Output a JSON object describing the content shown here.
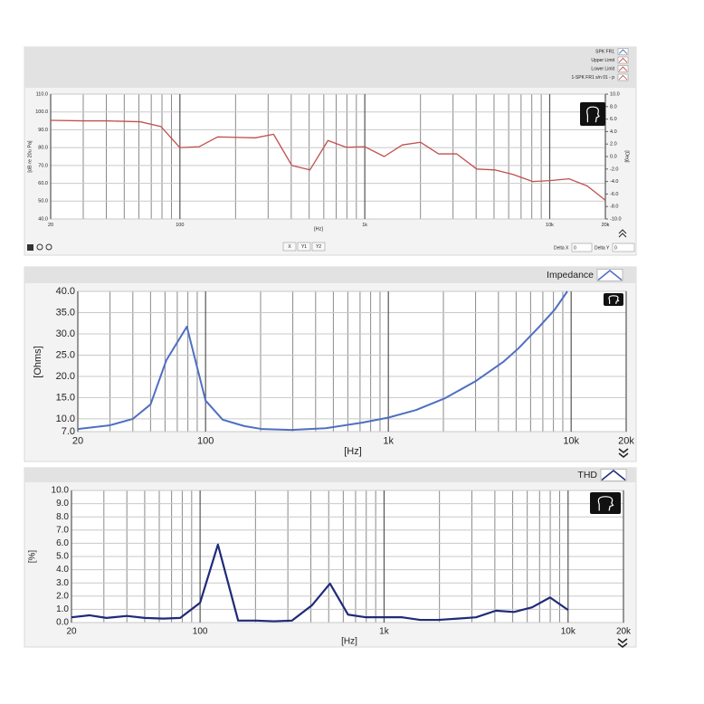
{
  "chart_data": [
    {
      "type": "line",
      "xscale": "log",
      "xlim": [
        20,
        20000
      ],
      "xticks": [
        20,
        100,
        {
          "value": 1000,
          "label": "1k"
        },
        {
          "value": 10000,
          "label": "10k"
        },
        {
          "value": 20000,
          "label": "20k"
        }
      ],
      "xgrid": [
        30,
        40,
        50,
        60,
        70,
        80,
        90,
        200,
        300,
        400,
        500,
        600,
        700,
        800,
        900,
        2000,
        3000,
        4000,
        5000,
        6000,
        7000,
        8000,
        9000
      ],
      "ylim": [
        40,
        110
      ],
      "yticks": [
        {
          "value": 110,
          "label": "110.0"
        },
        {
          "value": 100,
          "label": "100.0"
        },
        {
          "value": 90,
          "label": "90.0"
        },
        {
          "value": 80,
          "label": "80.0"
        },
        {
          "value": 70,
          "label": "70.0"
        },
        {
          "value": 60,
          "label": "60.0"
        },
        {
          "value": 50,
          "label": "50.0"
        },
        {
          "value": 40,
          "label": "40.0"
        }
      ],
      "y2lim": [
        -10,
        10
      ],
      "y2ticks": [
        {
          "value": 10,
          "label": "10.0"
        },
        {
          "value": 8,
          "label": "8.0"
        },
        {
          "value": 6,
          "label": "6.0"
        },
        {
          "value": 4,
          "label": "4.0"
        },
        {
          "value": 2,
          "label": "2.0"
        },
        {
          "value": 0,
          "label": "0.0"
        },
        {
          "value": -2,
          "label": "-2.0"
        },
        {
          "value": -4,
          "label": "-4.0"
        },
        {
          "value": -6,
          "label": "-6.0"
        },
        {
          "value": -8,
          "label": "-8.0"
        },
        {
          "value": -10,
          "label": "-10.0"
        }
      ],
      "xlabel": "[Hz]",
      "ylabel": "[dB re 20u Pa]",
      "y2label": "[Deg]",
      "legend": [
        {
          "name": "SPK FR1",
          "color": "#3b5bb5"
        },
        {
          "name": "Upper Limit",
          "color": "#c0392b"
        },
        {
          "name": "Lower Limit",
          "color": "#c0392b"
        }
      ],
      "x": [
        20,
        30,
        40,
        61,
        79,
        100,
        127,
        160,
        256,
        321,
        403,
        505,
        632,
        793,
        1000,
        1273,
        1595,
        2000,
        2507,
        3140,
        4030,
        5050,
        6325,
        8100,
        10000,
        12740,
        15960,
        20000
      ],
      "series": [
        {
          "name": "1-SPK FR1 s/n 01 - p",
          "color": "#c0504d",
          "values": [
            95.3,
            95,
            95,
            94.5,
            91.8,
            80,
            80.5,
            86,
            85.5,
            87.5,
            70,
            67.5,
            84,
            80.2,
            80.5,
            75,
            81.5,
            83,
            76.5,
            76.5,
            68,
            67.5,
            65,
            61,
            61.5,
            62.5,
            58.5,
            50.5
          ]
        }
      ],
      "buttons": [
        "X",
        "Y1",
        "Y2"
      ],
      "delta_x_label": "Delta X",
      "delta_x": 0,
      "delta_y_label": "Delta Y",
      "delta_y": 0
    },
    {
      "type": "line",
      "xscale": "log",
      "xlim": [
        20,
        20000
      ],
      "xticks": [
        20,
        100,
        {
          "value": 1000,
          "label": "1k"
        },
        {
          "value": 10000,
          "label": "10k"
        },
        {
          "value": 20000,
          "label": "20k"
        }
      ],
      "xgrid": [
        30,
        40,
        50,
        60,
        70,
        80,
        90,
        200,
        300,
        400,
        500,
        600,
        700,
        800,
        900,
        2000,
        3000,
        4000,
        5000,
        6000,
        7000,
        8000,
        9000
      ],
      "ylim": [
        7,
        40
      ],
      "yticks": [
        {
          "value": 40,
          "label": "40.0"
        },
        {
          "value": 35,
          "label": "35.0"
        },
        {
          "value": 30,
          "label": "30.0"
        },
        {
          "value": 25,
          "label": "25.0"
        },
        {
          "value": 20,
          "label": "20.0"
        },
        {
          "value": 15,
          "label": "15.0"
        },
        {
          "value": 10,
          "label": "10.0"
        },
        {
          "value": 7,
          "label": "7.0"
        }
      ],
      "xlabel": "[Hz]",
      "ylabel": "[Ohms]",
      "x": [
        20,
        30,
        40,
        50,
        61,
        79,
        100,
        124,
        163,
        204,
        294,
        454,
        716,
        1000,
        1420,
        2050,
        3010,
        4250,
        5150,
        6700,
        8130,
        9530
      ],
      "series": [
        {
          "name": "Impedance",
          "color": "#4f6fc2",
          "values": [
            7.6,
            8.5,
            10,
            13.4,
            23.8,
            31.7,
            14.3,
            9.8,
            8.3,
            7.6,
            7.4,
            7.8,
            9.1,
            10.3,
            12.1,
            14.9,
            18.9,
            23.4,
            26.6,
            31.7,
            35.7,
            40
          ]
        }
      ]
    },
    {
      "type": "line",
      "xscale": "log",
      "xlim": [
        20,
        20000
      ],
      "xticks": [
        20,
        100,
        {
          "value": 1000,
          "label": "1k"
        },
        {
          "value": 10000,
          "label": "10k"
        },
        {
          "value": 20000,
          "label": "20k"
        }
      ],
      "xgrid": [
        30,
        40,
        50,
        60,
        70,
        80,
        90,
        200,
        300,
        400,
        500,
        600,
        700,
        800,
        900,
        2000,
        3000,
        4000,
        5000,
        6000,
        7000,
        8000,
        9000
      ],
      "ylim": [
        0,
        10
      ],
      "yticks": [
        {
          "value": 10,
          "label": "10.0"
        },
        {
          "value": 9,
          "label": "9.0"
        },
        {
          "value": 8,
          "label": "8.0"
        },
        {
          "value": 7,
          "label": "7.0"
        },
        {
          "value": 6,
          "label": "6.0"
        },
        {
          "value": 5,
          "label": "5.0"
        },
        {
          "value": 4,
          "label": "4.0"
        },
        {
          "value": 3,
          "label": "3.0"
        },
        {
          "value": 2,
          "label": "2.0"
        },
        {
          "value": 1,
          "label": "1.0"
        },
        {
          "value": 0,
          "label": "0.0"
        }
      ],
      "xlabel": "[Hz]",
      "ylabel": "[%]",
      "x": [
        20,
        25,
        31,
        40,
        50,
        63,
        78,
        100,
        125,
        161,
        201,
        252,
        316,
        405,
        508,
        637,
        798,
        1000,
        1253,
        1570,
        1968,
        2520,
        3160,
        4050,
        5080,
        6370,
        7980,
        10000
      ],
      "series": [
        {
          "name": "THD",
          "color": "#1f2a7a",
          "values": [
            0.4,
            0.55,
            0.35,
            0.5,
            0.35,
            0.3,
            0.35,
            1.5,
            5.9,
            0.15,
            0.15,
            0.1,
            0.15,
            1.3,
            2.95,
            0.6,
            0.4,
            0.4,
            0.4,
            0.2,
            0.2,
            0.3,
            0.4,
            0.9,
            0.8,
            1.15,
            1.9,
            0.95
          ]
        }
      ]
    }
  ]
}
